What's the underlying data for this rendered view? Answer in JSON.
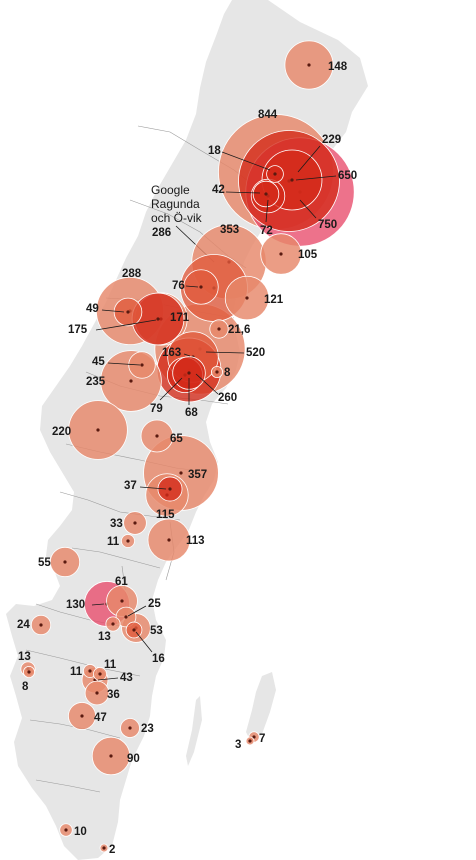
{
  "colors": {
    "land": "#e6e6e6",
    "bubble_light": "#e6876a",
    "bubble_mid": "#e05a3c",
    "bubble_dark": "#d42a1a",
    "bubble_pink": "#e84a6a"
  },
  "annotation": {
    "line1": "Google",
    "line2": "Ragunda",
    "line3": "och Ö-vik"
  },
  "sites": [
    {
      "label": "148",
      "value": 148,
      "tone": "light"
    },
    {
      "label": "844",
      "value": 844,
      "tone": "light"
    },
    {
      "label": "229",
      "value": 229,
      "tone": "dark"
    },
    {
      "label": "18",
      "value": 18,
      "tone": "dark"
    },
    {
      "label": "650",
      "value": 650,
      "tone": "dark"
    },
    {
      "label": "42",
      "value": 42,
      "tone": "dark"
    },
    {
      "label": "72",
      "value": 72,
      "tone": "dark"
    },
    {
      "label": "750",
      "value": 750,
      "tone": "pink"
    },
    {
      "label": "353",
      "value": 353,
      "tone": "light"
    },
    {
      "label": "286",
      "value": 286,
      "tone": "mid"
    },
    {
      "label": "105",
      "value": 105,
      "tone": "light"
    },
    {
      "label": "76",
      "value": 76,
      "tone": "mid"
    },
    {
      "label": "121",
      "value": 121,
      "tone": "light"
    },
    {
      "label": "288",
      "value": 288,
      "tone": "light"
    },
    {
      "label": "49",
      "value": 49,
      "tone": "mid"
    },
    {
      "label": "171",
      "value": 171,
      "tone": "dark"
    },
    {
      "label": "175",
      "value": 175,
      "tone": "light"
    },
    {
      "label": "21,6",
      "value": 21.6,
      "tone": "light"
    },
    {
      "label": "163",
      "value": 163,
      "tone": "mid"
    },
    {
      "label": "520",
      "value": 520,
      "tone": "light"
    },
    {
      "label": "45",
      "value": 45,
      "tone": "light"
    },
    {
      "label": "8",
      "value": 8,
      "tone": "light"
    },
    {
      "label": "235",
      "value": 235,
      "tone": "light"
    },
    {
      "label": "260",
      "value": 260,
      "tone": "dark"
    },
    {
      "label": "79",
      "value": 79,
      "tone": "dark"
    },
    {
      "label": "68",
      "value": 68,
      "tone": "dark"
    },
    {
      "label": "220",
      "value": 220,
      "tone": "light"
    },
    {
      "label": "65",
      "value": 65,
      "tone": "light"
    },
    {
      "label": "357",
      "value": 357,
      "tone": "light"
    },
    {
      "label": "37",
      "value": 37,
      "tone": "dark"
    },
    {
      "label": "115",
      "value": 115,
      "tone": "light"
    },
    {
      "label": "33",
      "value": 33,
      "tone": "light"
    },
    {
      "label": "11",
      "value": 11,
      "tone": "light"
    },
    {
      "label": "113",
      "value": 113,
      "tone": "light"
    },
    {
      "label": "55",
      "value": 55,
      "tone": "light"
    },
    {
      "label": "61",
      "value": 61,
      "tone": "light"
    },
    {
      "label": "130",
      "value": 130,
      "tone": "pink"
    },
    {
      "label": "25",
      "value": 25,
      "tone": "light"
    },
    {
      "label": "24",
      "value": 24,
      "tone": "light"
    },
    {
      "label": "13",
      "value": 13,
      "tone": "light"
    },
    {
      "label": "53",
      "value": 53,
      "tone": "light"
    },
    {
      "label": "16",
      "value": 16,
      "tone": "mid"
    },
    {
      "label": "13",
      "value": 13,
      "tone": "light"
    },
    {
      "label": "8",
      "value": 8,
      "tone": "light"
    },
    {
      "label": "11",
      "value": 11,
      "tone": "light"
    },
    {
      "label": "11",
      "value": 11,
      "tone": "light"
    },
    {
      "label": "43",
      "value": 43,
      "tone": "light"
    },
    {
      "label": "36",
      "value": 36,
      "tone": "light"
    },
    {
      "label": "47",
      "value": 47,
      "tone": "light"
    },
    {
      "label": "23",
      "value": 23,
      "tone": "light"
    },
    {
      "label": "90",
      "value": 90,
      "tone": "light"
    },
    {
      "label": "3",
      "value": 3,
      "tone": "light"
    },
    {
      "label": "7",
      "value": 7,
      "tone": "light"
    },
    {
      "label": "10",
      "value": 10,
      "tone": "light"
    },
    {
      "label": "2",
      "value": 2,
      "tone": "light"
    }
  ]
}
